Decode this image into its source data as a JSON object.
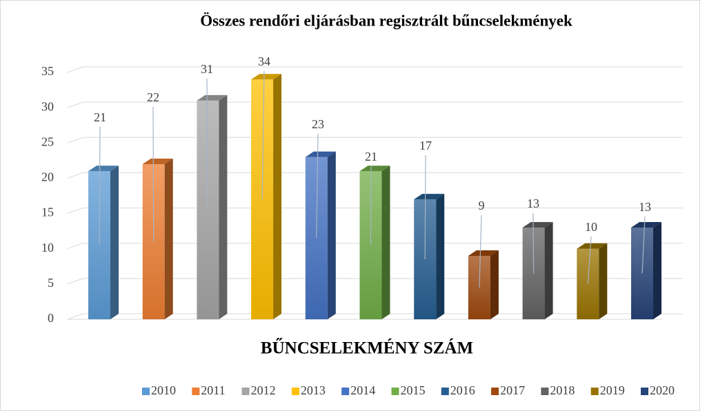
{
  "chart_data": {
    "type": "bar3d",
    "title": "Összes rendőri eljárásban regisztrált bűncselekmények",
    "x_label": "BŰNCSELEKMÉNY SZÁM",
    "ylim": [
      0,
      35
    ],
    "yticks": [
      0,
      5,
      10,
      15,
      20,
      25,
      30,
      35
    ],
    "grid": true,
    "legend": "bottom",
    "series": [
      {
        "name": "2010",
        "color": "#5b9bd5",
        "values": [
          21
        ]
      },
      {
        "name": "2011",
        "color": "#ed7d31",
        "values": [
          22
        ]
      },
      {
        "name": "2012",
        "color": "#a5a5a5",
        "values": [
          31
        ]
      },
      {
        "name": "2013",
        "color": "#ffc000",
        "values": [
          34
        ]
      },
      {
        "name": "2014",
        "color": "#4472c4",
        "values": [
          23
        ]
      },
      {
        "name": "2015",
        "color": "#70ad47",
        "values": [
          21
        ]
      },
      {
        "name": "2016",
        "color": "#255e91",
        "values": [
          17
        ]
      },
      {
        "name": "2017",
        "color": "#9e480e",
        "values": [
          9
        ]
      },
      {
        "name": "2018",
        "color": "#636363",
        "values": [
          13
        ]
      },
      {
        "name": "2019",
        "color": "#997300",
        "values": [
          10
        ]
      },
      {
        "name": "2020",
        "color": "#264478",
        "values": [
          13
        ]
      }
    ]
  }
}
